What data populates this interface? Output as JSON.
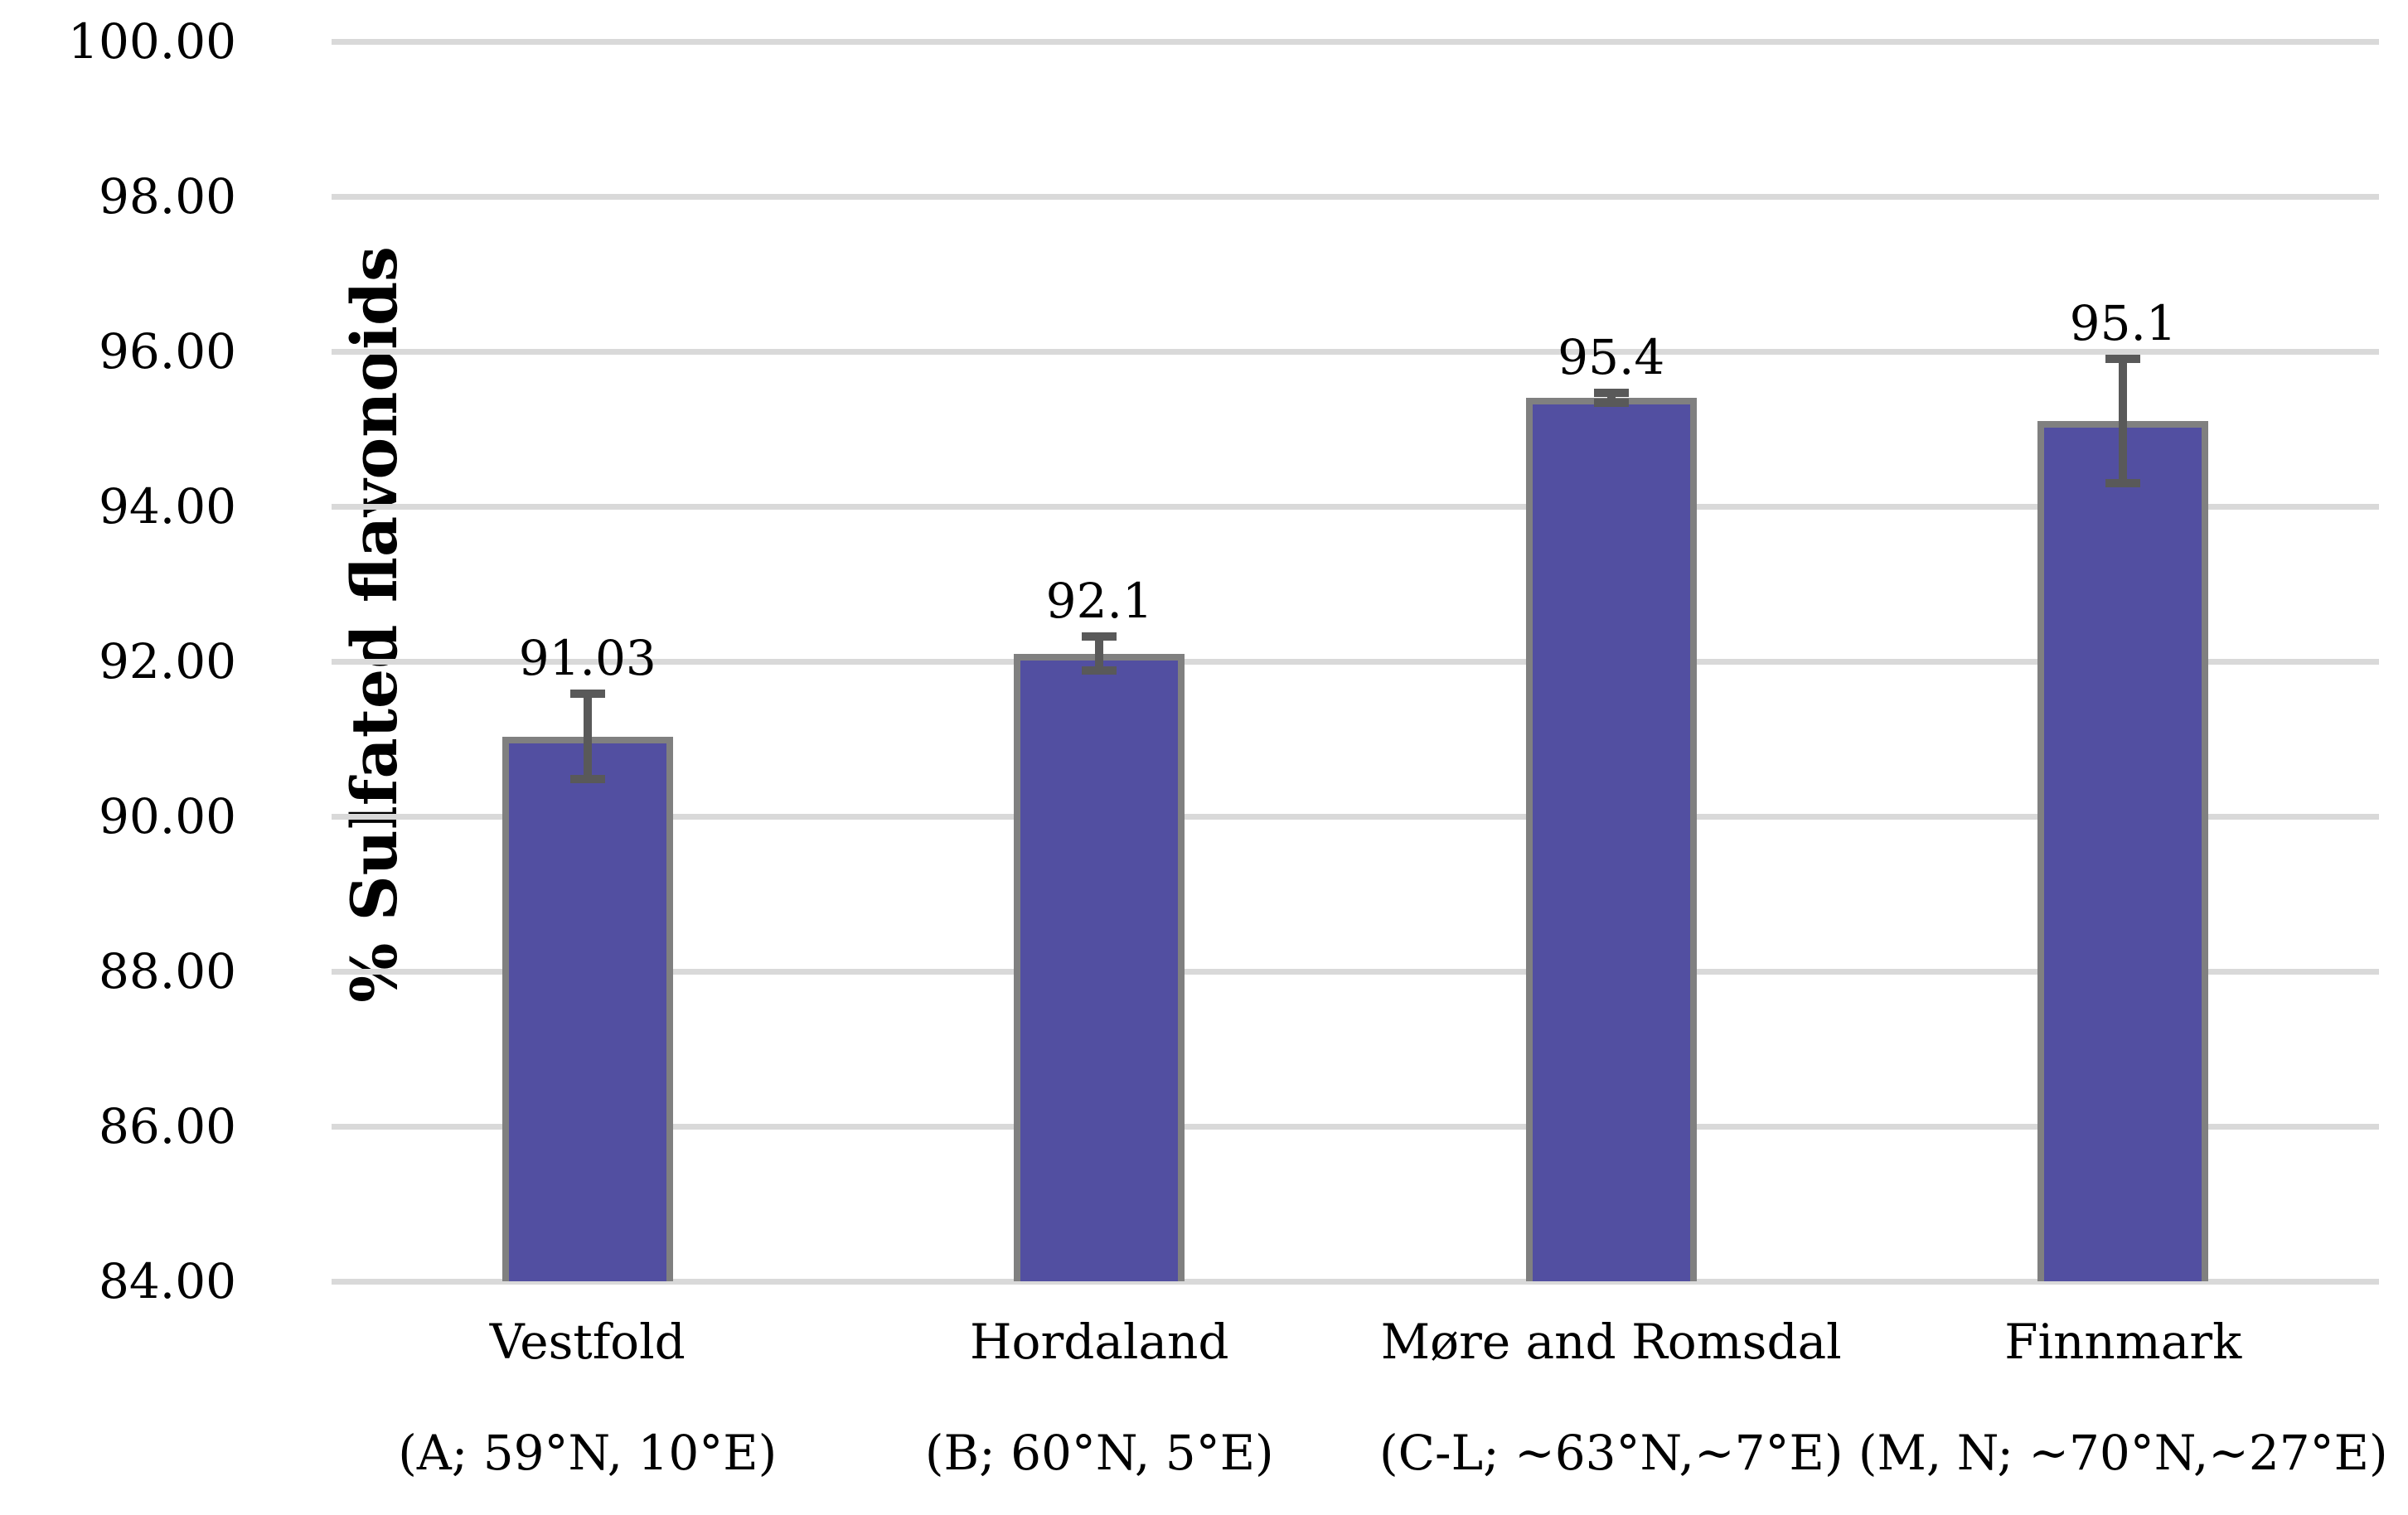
{
  "chart_data": {
    "type": "bar",
    "title": "",
    "xlabel": "",
    "ylabel": "% Sulfated flavonoids",
    "ylim": [
      84,
      100
    ],
    "ytick_step": 2,
    "ytick_labels": [
      "100.00",
      "98.00",
      "96.00",
      "94.00",
      "92.00",
      "90.00",
      "88.00",
      "86.00",
      "84.00"
    ],
    "grid": "horizontal",
    "legend": "none",
    "categories": [
      "Vestfold",
      "Hordaland",
      "Møre and Romsdal",
      "Finnmark"
    ],
    "category_sublabels": [
      "(A; 59°N, 10°E)",
      "(B; 60°N, 5°E)",
      "(C-L; ~63°N,~7°E)",
      "(M, N; ~70°N,~27°E)"
    ],
    "values": [
      91.03,
      92.1,
      95.4,
      95.1
    ],
    "data_labels": [
      "91.03",
      "92.1",
      "95.4",
      "95.1"
    ],
    "error_bars_plus_minus": [
      0.55,
      0.22,
      0.06,
      0.8
    ],
    "colors": {
      "bar_fill": "#524fa1",
      "bar_border": "#808080",
      "error_bar": "#595959",
      "gridline": "#d9d9d9",
      "text": "#000000",
      "background": "#ffffff"
    }
  }
}
